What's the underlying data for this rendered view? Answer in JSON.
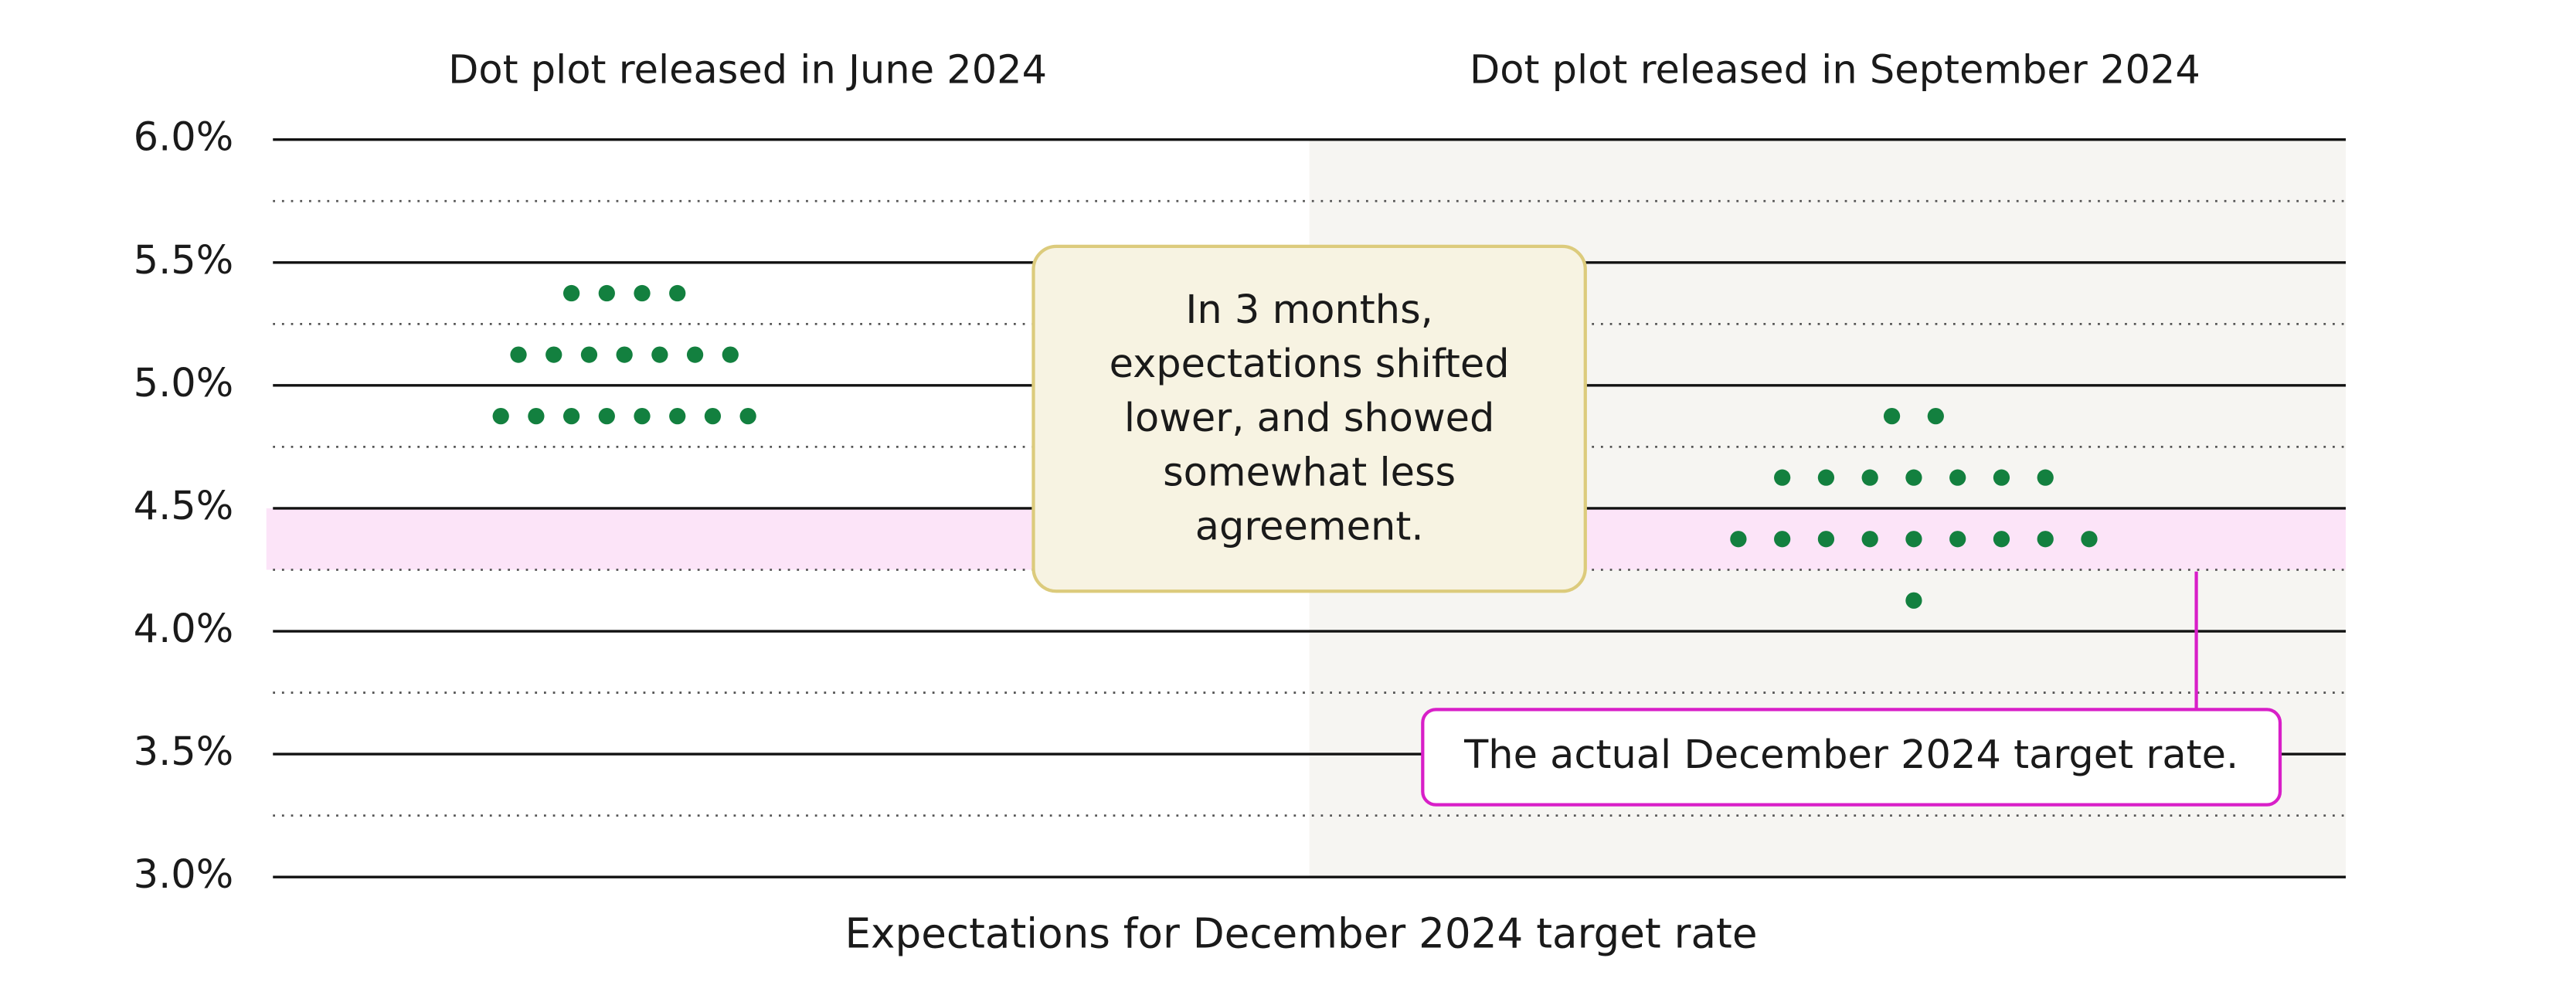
{
  "chart_data": {
    "type": "dot",
    "x_label": "Expectations for December 2024 target rate",
    "ylim": [
      3.0,
      6.0
    ],
    "yticks": [
      {
        "value": 3.0,
        "label": "3.0%"
      },
      {
        "value": 3.5,
        "label": "3.5%"
      },
      {
        "value": 4.0,
        "label": "4.0%"
      },
      {
        "value": 4.5,
        "label": "4.5%"
      },
      {
        "value": 5.0,
        "label": "5.0%"
      },
      {
        "value": 5.5,
        "label": "5.5%"
      },
      {
        "value": 6.0,
        "label": "6.0%"
      }
    ],
    "minor_yticks": [
      3.25,
      3.75,
      4.25,
      4.75,
      5.25,
      5.75
    ],
    "target_band": [
      4.25,
      4.5
    ],
    "target_band_color": "#fce4f8",
    "series": [
      {
        "name": "Dot plot released in June 2024",
        "color": "#13803f",
        "values": [
          5.375,
          5.375,
          5.375,
          5.375,
          5.125,
          5.125,
          5.125,
          5.125,
          5.125,
          5.125,
          5.125,
          4.875,
          4.875,
          4.875,
          4.875,
          4.875,
          4.875,
          4.875,
          4.875
        ]
      },
      {
        "name": "Dot plot released in September 2024",
        "color": "#13803f",
        "values": [
          4.875,
          4.875,
          4.625,
          4.625,
          4.625,
          4.625,
          4.625,
          4.625,
          4.625,
          4.375,
          4.375,
          4.375,
          4.375,
          4.375,
          4.375,
          4.375,
          4.375,
          4.375,
          4.125
        ]
      }
    ],
    "annotations": [
      {
        "lines": [
          "In 3 months,",
          "expectations shifted",
          "lower, and showed",
          "somewhat less",
          "agreement."
        ]
      },
      {
        "lines": [
          "The actual December 2024 target rate."
        ]
      }
    ]
  }
}
